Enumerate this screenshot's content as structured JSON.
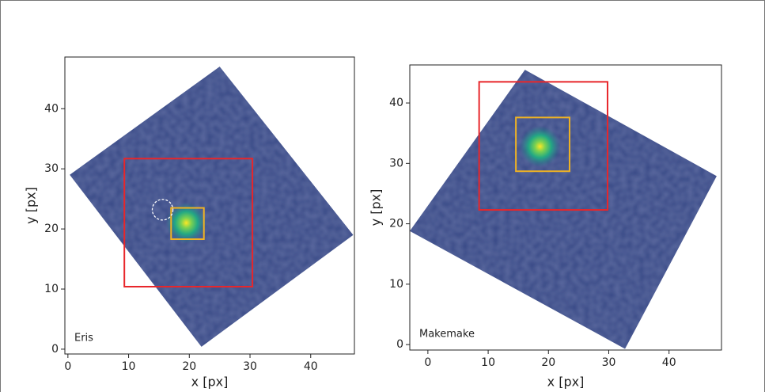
{
  "chart_data": [
    {
      "type": "image",
      "label": "Eris",
      "xlabel": "x [px]",
      "ylabel": "y [px]",
      "xlim": [
        -0.5,
        47.2
      ],
      "ylim": [
        -0.8,
        48.6
      ],
      "xticks": [
        0,
        10,
        20,
        30,
        40
      ],
      "yticks": [
        0,
        10,
        20,
        30,
        40
      ],
      "footprint": {
        "x": [
          25,
          47,
          22,
          0.3
        ],
        "y": [
          47,
          19,
          0.4,
          29
        ],
        "color": "#3d4e8a"
      },
      "target": {
        "x": 19.5,
        "y": 21
      },
      "boxes": [
        {
          "xlim": [
            9.3,
            30.4
          ],
          "ylim": [
            10.4,
            31.7
          ],
          "color": "#e8262a"
        },
        {
          "xlim": [
            17,
            22.4
          ],
          "ylim": [
            18.3,
            23.5
          ],
          "color": "#f0b323"
        }
      ],
      "circle": {
        "x": 15.6,
        "y": 23.2,
        "r": 1.7,
        "color": "#ffffff"
      }
    },
    {
      "type": "image",
      "label": "Makemake",
      "xlabel": "x [px]",
      "ylabel": "y [px]",
      "xlim": [
        -3,
        48.7
      ],
      "ylim": [
        -0.9,
        46.3
      ],
      "xticks": [
        0,
        10,
        20,
        30,
        40
      ],
      "yticks": [
        0,
        10,
        20,
        30,
        40
      ],
      "footprint": {
        "x": [
          16.1,
          47.9,
          32.7,
          -3
        ],
        "y": [
          45.5,
          27.9,
          -0.7,
          18.8
        ],
        "color": "#3d4e8a"
      },
      "target": {
        "x": 18.6,
        "y": 32.8
      },
      "boxes": [
        {
          "xlim": [
            8.5,
            29.8
          ],
          "ylim": [
            22.3,
            43.5
          ],
          "color": "#e8262a"
        },
        {
          "xlim": [
            14.6,
            23.5
          ],
          "ylim": [
            28.7,
            37.6
          ],
          "color": "#f0b323"
        }
      ]
    }
  ]
}
